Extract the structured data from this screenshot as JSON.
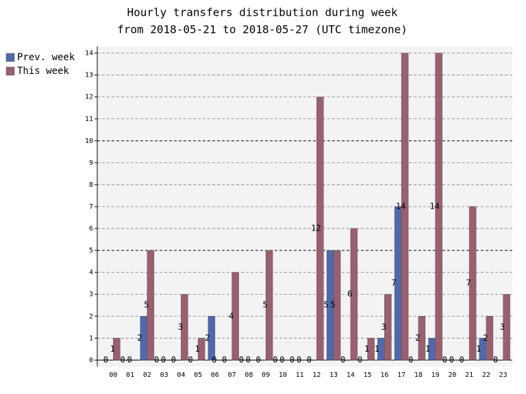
{
  "chart_data": {
    "type": "bar",
    "title": "Hourly transfers distribution during week",
    "subtitle": "from 2018-05-21 to 2018-05-27 (UTC timezone)",
    "categories": [
      "00",
      "01",
      "02",
      "03",
      "04",
      "05",
      "06",
      "07",
      "08",
      "09",
      "10",
      "11",
      "12",
      "13",
      "14",
      "15",
      "16",
      "17",
      "18",
      "19",
      "20",
      "21",
      "22",
      "23"
    ],
    "series": [
      {
        "name": "Prev. week",
        "color": "#4f69ad",
        "values": [
          0,
          0,
          2,
          0,
          0,
          0,
          2,
          0,
          0,
          0,
          0,
          0,
          0,
          5,
          0,
          0,
          1,
          7,
          0,
          1,
          0,
          0,
          1,
          0
        ]
      },
      {
        "name": "This week",
        "color": "#9a6070",
        "values": [
          1,
          0,
          5,
          0,
          3,
          1,
          0,
          4,
          0,
          5,
          0,
          0,
          12,
          5,
          6,
          1,
          3,
          14,
          2,
          14,
          0,
          7,
          2,
          3
        ]
      }
    ],
    "ylim": [
      -0.3,
      14.3
    ],
    "yticks": [
      0,
      1,
      2,
      3,
      4,
      5,
      6,
      7,
      8,
      9,
      10,
      11,
      12,
      13,
      14
    ],
    "grid": true,
    "legend": "top-left"
  }
}
